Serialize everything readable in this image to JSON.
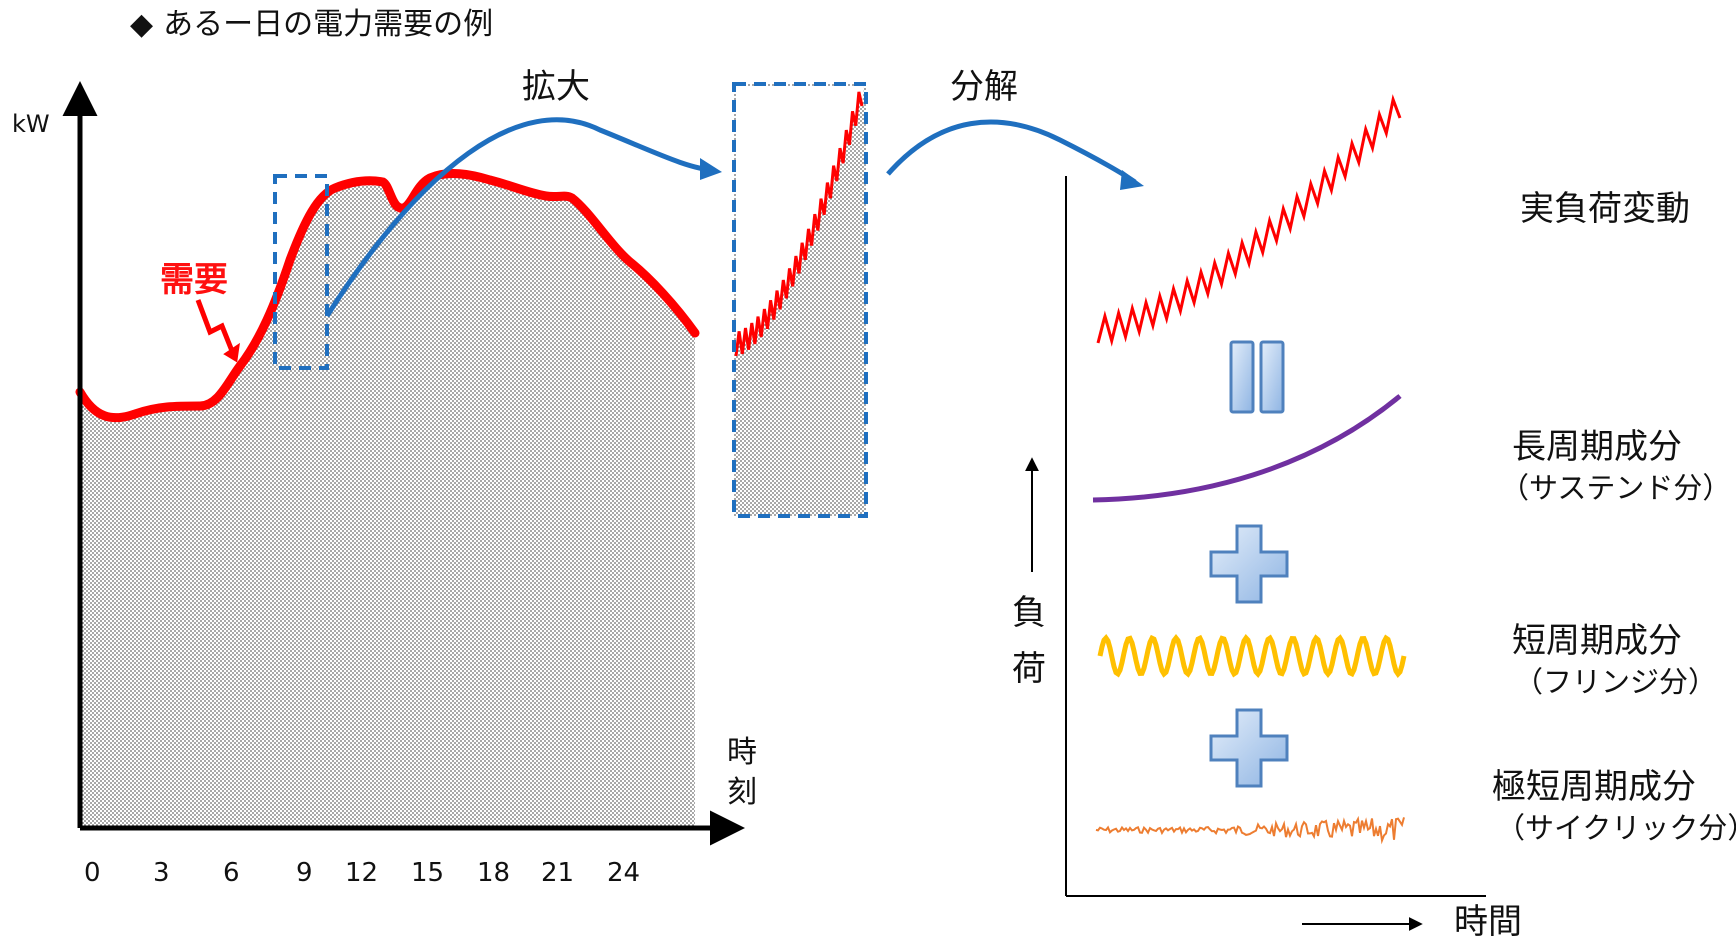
{
  "title": "あるー日の電力需要の例",
  "title_bullet": "◆",
  "left_chart": {
    "y_axis_label": "kW",
    "x_axis_label_line1": "時",
    "x_axis_label_line2": "刻",
    "x_ticks": [
      "0",
      "3",
      "6",
      "9",
      "12",
      "15",
      "18",
      "21",
      "24"
    ],
    "demand_label": "需要"
  },
  "annotations": {
    "zoom_label": "拡大",
    "decompose_label": "分解"
  },
  "right_panel": {
    "y_axis_label_line1": "負",
    "y_axis_label_line2": "荷",
    "x_axis_label": "時間",
    "components": [
      {
        "name": "実負荷変動",
        "sub": ""
      },
      {
        "name": "長周期成分",
        "sub": "（サステンド分）"
      },
      {
        "name": "短周期成分",
        "sub": "（フリンジ分）"
      },
      {
        "name": "極短周期成分",
        "sub": "（サイクリック分）"
      }
    ],
    "operators": [
      "equals",
      "plus",
      "plus"
    ]
  },
  "colors": {
    "demand": "#ff0000",
    "arrow": "#1f6fbf",
    "zoom_box": "#1f6fbf",
    "long_period": "#7030a0",
    "short_period": "#ffc000",
    "very_short": "#ed7d31",
    "operator_fill": "#9dc3e6"
  }
}
